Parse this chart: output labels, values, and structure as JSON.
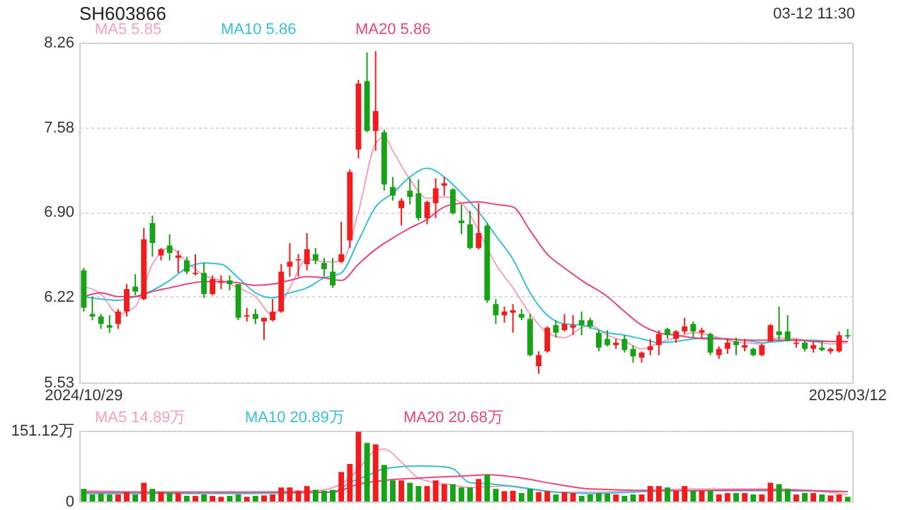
{
  "chart_data": [
    {
      "type": "candlestick",
      "title": "SH603866",
      "annotations": [
        "03-12 11:30"
      ],
      "categories": [
        "2024/10/29",
        null,
        null,
        null,
        null,
        null,
        null,
        null,
        null,
        null,
        null,
        null,
        null,
        null,
        null,
        null,
        null,
        null,
        null,
        null,
        null,
        null,
        null,
        null,
        null,
        null,
        null,
        null,
        null,
        null,
        null,
        null,
        null,
        null,
        null,
        null,
        null,
        null,
        null,
        null,
        null,
        null,
        null,
        null,
        null,
        null,
        null,
        null,
        null,
        null,
        null,
        null,
        null,
        null,
        null,
        null,
        null,
        null,
        null,
        null,
        null,
        null,
        null,
        null,
        null,
        null,
        null,
        null,
        null,
        null,
        null,
        null,
        null,
        null,
        null,
        null,
        null,
        null,
        null,
        null,
        null,
        null,
        null,
        null,
        null,
        null,
        null,
        null,
        null,
        "2025/03/12"
      ],
      "ohlc": [
        [
          6.43,
          6.45,
          6.1,
          6.13
        ],
        [
          6.08,
          6.22,
          6.03,
          6.06
        ],
        [
          6.06,
          6.08,
          5.96,
          6.0
        ],
        [
          5.99,
          6.07,
          5.93,
          5.97
        ],
        [
          6.0,
          6.12,
          5.96,
          6.1
        ],
        [
          6.1,
          6.32,
          6.06,
          6.28
        ],
        [
          6.3,
          6.4,
          6.23,
          6.26
        ],
        [
          6.2,
          6.77,
          6.19,
          6.68
        ],
        [
          6.81,
          6.87,
          6.54,
          6.65
        ],
        [
          6.55,
          6.61,
          6.51,
          6.6
        ],
        [
          6.63,
          6.72,
          6.51,
          6.57
        ],
        [
          6.53,
          6.59,
          6.41,
          6.55
        ],
        [
          6.51,
          6.54,
          6.4,
          6.42
        ],
        [
          6.4,
          6.56,
          6.39,
          6.41
        ],
        [
          6.41,
          6.49,
          6.21,
          6.24
        ],
        [
          6.24,
          6.39,
          6.23,
          6.36
        ],
        [
          6.33,
          6.39,
          6.28,
          6.34
        ],
        [
          6.35,
          6.39,
          6.27,
          6.32
        ],
        [
          6.32,
          6.32,
          6.03,
          6.05
        ],
        [
          6.06,
          6.13,
          6.02,
          6.07
        ],
        [
          6.08,
          6.12,
          6.0,
          6.04
        ],
        [
          6.02,
          6.05,
          5.87,
          6.05
        ],
        [
          6.03,
          6.2,
          6.02,
          6.1
        ],
        [
          6.1,
          6.48,
          6.09,
          6.42
        ],
        [
          6.46,
          6.65,
          6.38,
          6.5
        ],
        [
          6.51,
          6.56,
          6.38,
          6.52
        ],
        [
          6.48,
          6.73,
          6.43,
          6.6
        ],
        [
          6.56,
          6.61,
          6.48,
          6.51
        ],
        [
          6.49,
          6.53,
          6.38,
          6.44
        ],
        [
          6.42,
          6.53,
          6.29,
          6.31
        ],
        [
          6.5,
          6.82,
          6.49,
          6.56
        ],
        [
          6.67,
          7.24,
          6.61,
          7.22
        ],
        [
          7.4,
          7.96,
          7.33,
          7.93
        ],
        [
          7.95,
          8.18,
          7.54,
          7.55
        ],
        [
          7.55,
          8.19,
          7.39,
          7.71
        ],
        [
          7.54,
          7.56,
          7.07,
          7.12
        ],
        [
          7.1,
          7.18,
          6.99,
          7.03
        ],
        [
          6.93,
          7.01,
          6.79,
          6.99
        ],
        [
          7.07,
          7.17,
          6.96,
          7.02
        ],
        [
          7.05,
          7.16,
          6.83,
          6.85
        ],
        [
          6.85,
          6.99,
          6.8,
          6.98
        ],
        [
          6.97,
          7.17,
          6.85,
          7.09
        ],
        [
          7.11,
          7.18,
          7.03,
          7.13
        ],
        [
          7.08,
          7.09,
          6.88,
          6.89
        ],
        [
          6.83,
          6.96,
          6.72,
          6.81
        ],
        [
          6.8,
          6.91,
          6.6,
          6.61
        ],
        [
          6.61,
          6.97,
          6.6,
          6.73
        ],
        [
          6.79,
          6.81,
          6.17,
          6.19
        ],
        [
          6.16,
          6.2,
          6.0,
          6.07
        ],
        [
          6.07,
          6.14,
          6.01,
          6.1
        ],
        [
          6.09,
          6.16,
          5.93,
          6.11
        ],
        [
          6.08,
          6.12,
          6.03,
          6.05
        ],
        [
          6.04,
          6.08,
          5.74,
          5.75
        ],
        [
          5.66,
          5.78,
          5.6,
          5.75
        ],
        [
          5.78,
          5.98,
          5.77,
          5.97
        ],
        [
          5.99,
          6.03,
          5.89,
          5.93
        ],
        [
          5.95,
          6.08,
          5.94,
          6.0
        ],
        [
          5.97,
          6.07,
          5.91,
          5.99
        ],
        [
          6.03,
          6.1,
          5.91,
          5.99
        ],
        [
          6.03,
          6.05,
          5.96,
          5.98
        ],
        [
          5.93,
          5.95,
          5.78,
          5.81
        ],
        [
          5.88,
          5.95,
          5.82,
          5.83
        ],
        [
          5.83,
          5.88,
          5.8,
          5.85
        ],
        [
          5.88,
          5.91,
          5.77,
          5.79
        ],
        [
          5.8,
          5.83,
          5.69,
          5.74
        ],
        [
          5.73,
          5.78,
          5.69,
          5.77
        ],
        [
          5.79,
          5.88,
          5.75,
          5.82
        ],
        [
          5.83,
          5.95,
          5.75,
          5.92
        ],
        [
          5.96,
          5.97,
          5.88,
          5.91
        ],
        [
          5.88,
          5.95,
          5.85,
          5.94
        ],
        [
          5.94,
          6.05,
          5.92,
          5.98
        ],
        [
          6.0,
          6.02,
          5.89,
          5.94
        ],
        [
          5.93,
          5.97,
          5.89,
          5.95
        ],
        [
          5.92,
          5.93,
          5.75,
          5.77
        ],
        [
          5.75,
          5.82,
          5.72,
          5.8
        ],
        [
          5.8,
          5.88,
          5.76,
          5.85
        ],
        [
          5.86,
          5.89,
          5.75,
          5.83
        ],
        [
          5.81,
          5.88,
          5.78,
          5.83
        ],
        [
          5.8,
          5.81,
          5.74,
          5.75
        ],
        [
          5.75,
          5.84,
          5.74,
          5.83
        ],
        [
          5.86,
          6.0,
          5.86,
          5.99
        ],
        [
          5.94,
          6.14,
          5.87,
          5.91
        ],
        [
          5.94,
          6.07,
          5.86,
          5.87
        ],
        [
          5.84,
          5.88,
          5.81,
          5.85
        ],
        [
          5.85,
          5.86,
          5.78,
          5.8
        ],
        [
          5.8,
          5.86,
          5.77,
          5.83
        ],
        [
          5.81,
          5.86,
          5.78,
          5.79
        ],
        [
          5.78,
          5.81,
          5.76,
          5.8
        ],
        [
          5.78,
          5.94,
          5.77,
          5.91
        ],
        [
          5.91,
          5.96,
          5.88,
          5.9
        ]
      ],
      "colors": [
        "#16a316",
        "#16a316",
        "#16a316",
        "#16a316",
        "#f21c1c",
        "#f21c1c",
        "#16a316",
        "#f21c1c",
        "#16a316",
        "#f21c1c",
        "#16a316",
        "#f21c1c",
        "#16a316",
        "#f21c1c",
        "#16a316",
        "#f21c1c",
        "#f21c1c",
        "#16a316",
        "#16a316",
        "#f21c1c",
        "#16a316",
        "#f21c1c",
        "#f21c1c",
        "#f21c1c",
        "#f21c1c",
        "#f21c1c",
        "#f21c1c",
        "#16a316",
        "#16a316",
        "#16a316",
        "#f21c1c",
        "#f21c1c",
        "#f21c1c",
        "#16a316",
        "#f21c1c",
        "#16a316",
        "#16a316",
        "#f21c1c",
        "#16a316",
        "#16a316",
        "#f21c1c",
        "#f21c1c",
        "#f21c1c",
        "#16a316",
        "#16a316",
        "#16a316",
        "#f21c1c",
        "#16a316",
        "#16a316",
        "#f21c1c",
        "#f21c1c",
        "#16a316",
        "#16a316",
        "#f21c1c",
        "#f21c1c",
        "#16a316",
        "#f21c1c",
        "#f21c1c",
        "#16a316",
        "#16a316",
        "#16a316",
        "#16a316",
        "#f21c1c",
        "#16a316",
        "#16a316",
        "#f21c1c",
        "#f21c1c",
        "#f21c1c",
        "#16a316",
        "#f21c1c",
        "#f21c1c",
        "#16a316",
        "#f21c1c",
        "#16a316",
        "#f21c1c",
        "#f21c1c",
        "#16a316",
        "#f21c1c",
        "#16a316",
        "#f21c1c",
        "#f21c1c",
        "#16a316",
        "#16a316",
        "#f21c1c",
        "#16a316",
        "#f21c1c",
        "#16a316",
        "#f21c1c",
        "#f21c1c",
        "#16a316"
      ],
      "series": [
        {
          "name": "MA5 5.85",
          "type": "line",
          "color": "#f7a1bd",
          "values": [
            6.3,
            null,
            6.24,
            null,
            6.08,
            null,
            6.14,
            null,
            6.48,
            null,
            6.61,
            null,
            6.5,
            null,
            6.39,
            null,
            6.35,
            null,
            6.29,
            null,
            6.22,
            null,
            6.07,
            null,
            6.29,
            null,
            6.52,
            null,
            6.5,
            null,
            6.5,
            null,
            6.9,
            null,
            7.45,
            7.5,
            7.39,
            null,
            7.16,
            null,
            7.01,
            null,
            7.02,
            null,
            6.97,
            null,
            6.75,
            null,
            6.48,
            null,
            6.29,
            null,
            6.08,
            null,
            5.93,
            null,
            5.89,
            null,
            5.97,
            5.99,
            null,
            5.91,
            null,
            5.86,
            null,
            5.8,
            null,
            5.85,
            null,
            5.89,
            null,
            5.93,
            null,
            5.91,
            null,
            5.87,
            null,
            5.85,
            null,
            5.84,
            null,
            5.89,
            null,
            5.88,
            null,
            5.86,
            null,
            5.84,
            null,
            5.85
          ]
        },
        {
          "name": "MA10 5.86",
          "type": "line",
          "color": "#38bfdc",
          "values": [
            6.22,
            null,
            6.2,
            null,
            6.19,
            null,
            6.22,
            null,
            6.27,
            null,
            6.35,
            null,
            6.45,
            null,
            6.49,
            null,
            6.48,
            null,
            6.37,
            null,
            6.25,
            null,
            6.21,
            null,
            6.25,
            null,
            6.29,
            null,
            6.37,
            null,
            6.41,
            null,
            6.67,
            null,
            6.94,
            null,
            7.05,
            null,
            7.18,
            null,
            7.25,
            null,
            7.18,
            null,
            7.05,
            null,
            6.9,
            null,
            6.71,
            null,
            6.52,
            null,
            6.25,
            null,
            6.07,
            null,
            6.0,
            null,
            5.99,
            null,
            null,
            5.93,
            null,
            5.91,
            null,
            5.88,
            null,
            5.85,
            null,
            5.86,
            null,
            5.88,
            null,
            5.89,
            null,
            5.88,
            null,
            5.87,
            null,
            5.85,
            null,
            5.86,
            null,
            5.87,
            null,
            5.87,
            null,
            5.86,
            null,
            5.86
          ]
        },
        {
          "name": "MA20 5.86",
          "type": "line",
          "color": "#e8457a",
          "values": [
            6.22,
            null,
            6.25,
            null,
            6.22,
            null,
            6.22,
            null,
            6.26,
            null,
            6.29,
            null,
            6.32,
            null,
            6.34,
            null,
            6.34,
            null,
            6.33,
            null,
            6.31,
            null,
            6.32,
            null,
            6.35,
            null,
            6.38,
            null,
            6.37,
            null,
            6.35,
            null,
            6.48,
            null,
            6.6,
            null,
            6.69,
            null,
            6.77,
            null,
            6.84,
            null,
            6.94,
            null,
            6.97,
            null,
            6.98,
            null,
            6.96,
            null,
            6.94,
            null,
            6.75,
            null,
            6.56,
            null,
            6.45,
            null,
            6.35,
            null,
            null,
            6.22,
            null,
            6.1,
            null,
            5.99,
            null,
            5.93,
            null,
            5.91,
            null,
            5.89,
            null,
            5.88,
            null,
            5.88,
            null,
            5.87,
            null,
            5.87,
            null,
            5.87,
            null,
            5.87,
            null,
            5.86,
            null,
            5.86,
            null,
            5.86
          ]
        }
      ],
      "ylim": [
        5.53,
        8.26
      ],
      "yticks": [
        5.53,
        6.22,
        {
          "value": 6.9,
          "label": "6.90"
        },
        7.58,
        8.26
      ],
      "grid": "y",
      "legend": "top left"
    },
    {
      "type": "bar",
      "categories": [
        "2024/10/29",
        null,
        null,
        null,
        null,
        null,
        null,
        null,
        null,
        null,
        null,
        null,
        null,
        null,
        null,
        null,
        null,
        null,
        null,
        null,
        null,
        null,
        null,
        null,
        null,
        null,
        null,
        null,
        null,
        null,
        null,
        null,
        null,
        null,
        null,
        null,
        null,
        null,
        null,
        null,
        null,
        null,
        null,
        null,
        null,
        null,
        null,
        null,
        null,
        null,
        null,
        null,
        null,
        null,
        null,
        null,
        null,
        null,
        null,
        null,
        null,
        null,
        null,
        null,
        null,
        null,
        null,
        null,
        null,
        null,
        null,
        null,
        null,
        null,
        null,
        null,
        null,
        null,
        null,
        null,
        null,
        null,
        null,
        null,
        null,
        null,
        null,
        null,
        null,
        "2025/03/12"
      ],
      "series": [
        {
          "type": "bar",
          "colors": [
            "#16a316",
            "#16a316",
            "#16a316",
            "#16a316",
            "#f21c1c",
            "#f21c1c",
            "#16a316",
            "#f21c1c",
            "#16a316",
            "#f21c1c",
            "#16a316",
            "#f21c1c",
            "#16a316",
            "#f21c1c",
            "#16a316",
            "#f21c1c",
            "#f21c1c",
            "#16a316",
            "#16a316",
            "#f21c1c",
            "#16a316",
            "#f21c1c",
            "#f21c1c",
            "#f21c1c",
            "#f21c1c",
            "#f21c1c",
            "#f21c1c",
            "#16a316",
            "#16a316",
            "#16a316",
            "#f21c1c",
            "#f21c1c",
            "#f21c1c",
            "#16a316",
            "#f21c1c",
            "#16a316",
            "#16a316",
            "#f21c1c",
            "#16a316",
            "#16a316",
            "#f21c1c",
            "#f21c1c",
            "#f21c1c",
            "#16a316",
            "#16a316",
            "#16a316",
            "#f21c1c",
            "#16a316",
            "#16a316",
            "#f21c1c",
            "#f21c1c",
            "#16a316",
            "#16a316",
            "#f21c1c",
            "#f21c1c",
            "#16a316",
            "#f21c1c",
            "#f21c1c",
            "#16a316",
            "#16a316",
            "#16a316",
            "#16a316",
            "#f21c1c",
            "#16a316",
            "#16a316",
            "#f21c1c",
            "#f21c1c",
            "#f21c1c",
            "#16a316",
            "#f21c1c",
            "#f21c1c",
            "#16a316",
            "#f21c1c",
            "#16a316",
            "#f21c1c",
            "#f21c1c",
            "#16a316",
            "#f21c1c",
            "#16a316",
            "#f21c1c",
            "#f21c1c",
            "#16a316",
            "#16a316",
            "#f21c1c",
            "#16a316",
            "#f21c1c",
            "#16a316",
            "#f21c1c",
            "#f21c1c",
            "#16a316"
          ],
          "values": [
            27,
            15,
            17,
            15,
            15,
            20,
            15,
            40,
            27,
            20,
            18,
            18,
            12,
            12,
            15,
            12,
            10,
            12,
            15,
            10,
            12,
            13,
            15,
            30,
            30,
            23,
            33,
            25,
            23,
            25,
            63,
            80,
            149,
            125,
            122,
            78,
            45,
            45,
            40,
            33,
            33,
            45,
            37,
            37,
            30,
            30,
            48,
            57,
            27,
            22,
            23,
            18,
            27,
            20,
            22,
            15,
            20,
            18,
            12,
            15,
            18,
            17,
            15,
            12,
            15,
            15,
            33,
            33,
            30,
            23,
            33,
            23,
            23,
            23,
            15,
            18,
            18,
            18,
            15,
            15,
            40,
            37,
            27,
            15,
            18,
            18,
            15,
            13,
            15,
            10
          ]
        },
        {
          "name": "MA5 14.89万",
          "type": "line",
          "color": "#f7a1bd",
          "values": [
            23,
            null,
            null,
            null,
            null,
            null,
            null,
            null,
            null,
            20,
            null,
            null,
            null,
            null,
            null,
            null,
            null,
            null,
            null,
            20,
            null,
            null,
            null,
            null,
            null,
            null,
            null,
            23,
            null,
            null,
            37,
            null,
            69,
            null,
            109,
            112,
            null,
            84,
            null,
            50,
            null,
            40,
            null,
            35,
            null,
            30,
            null,
            null,
            null,
            33,
            null,
            null,
            null,
            null,
            null,
            20,
            null,
            null,
            null,
            20,
            null,
            null,
            null,
            null,
            null,
            null,
            null,
            25,
            null,
            null,
            null,
            27,
            null,
            null,
            null,
            null,
            null,
            null,
            null,
            null,
            null,
            27,
            null,
            null,
            null,
            null,
            null,
            null,
            null,
            15
          ]
        },
        {
          "name": "MA10 20.89万",
          "type": "line",
          "color": "#38bfdc",
          "values": [
            17,
            null,
            null,
            null,
            null,
            null,
            null,
            null,
            null,
            null,
            null,
            null,
            null,
            null,
            null,
            null,
            null,
            null,
            null,
            17,
            null,
            null,
            null,
            null,
            null,
            null,
            null,
            null,
            null,
            20,
            null,
            40,
            null,
            55,
            null,
            70,
            null,
            null,
            null,
            76,
            null,
            null,
            74,
            70,
            null,
            40,
            null,
            38,
            null,
            null,
            null,
            30,
            null,
            null,
            null,
            20,
            null,
            null,
            null,
            17,
            null,
            null,
            null,
            null,
            null,
            null,
            null,
            null,
            null,
            23,
            null,
            null,
            null,
            null,
            null,
            null,
            null,
            null,
            null,
            23,
            null,
            null,
            null,
            null,
            null,
            null,
            null,
            null,
            null,
            21
          ]
        },
        {
          "name": "MA20 20.68万",
          "type": "line",
          "color": "#e8457a",
          "values": [
            20,
            null,
            null,
            null,
            null,
            null,
            null,
            null,
            null,
            null,
            null,
            null,
            null,
            null,
            null,
            null,
            null,
            null,
            null,
            20,
            null,
            null,
            null,
            null,
            null,
            null,
            null,
            null,
            null,
            20,
            null,
            null,
            37,
            null,
            null,
            45,
            null,
            null,
            null,
            50,
            null,
            null,
            null,
            null,
            null,
            55,
            null,
            57,
            null,
            null,
            null,
            50,
            null,
            null,
            null,
            37,
            null,
            null,
            null,
            27,
            null,
            null,
            null,
            null,
            null,
            null,
            null,
            null,
            null,
            23,
            null,
            null,
            null,
            null,
            null,
            null,
            null,
            null,
            null,
            25,
            null,
            null,
            null,
            null,
            null,
            null,
            null,
            null,
            null,
            21
          ]
        }
      ],
      "ylim": [
        0,
        151.12
      ],
      "yticks": [
        0,
        {
          "value": 151.12,
          "label": "151.12万"
        }
      ],
      "grid": "y",
      "legend": "top left",
      "tick_labels": "y"
    }
  ]
}
